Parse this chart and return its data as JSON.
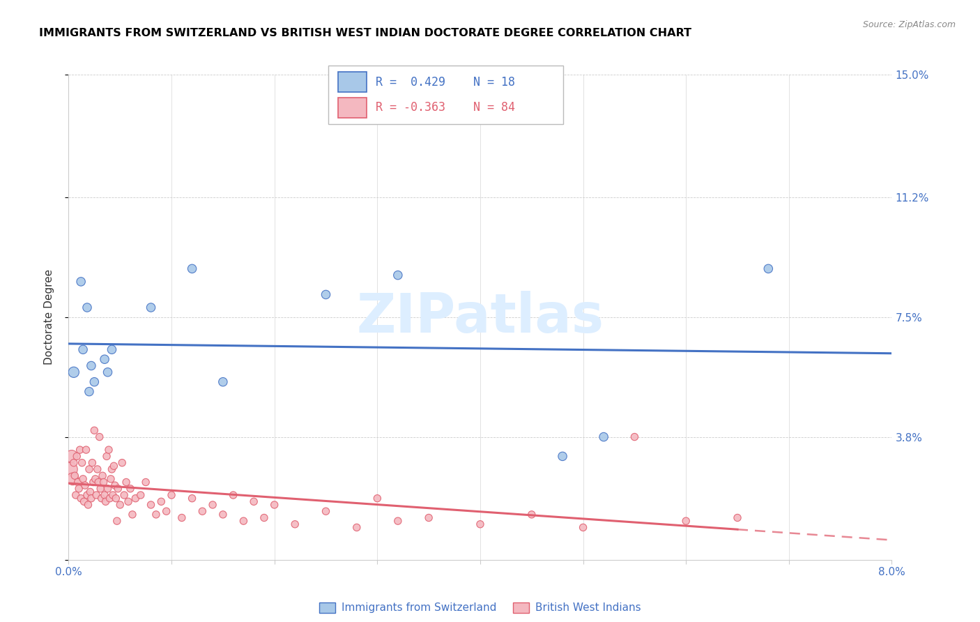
{
  "title": "IMMIGRANTS FROM SWITZERLAND VS BRITISH WEST INDIAN DOCTORATE DEGREE CORRELATION CHART",
  "source": "Source: ZipAtlas.com",
  "ylabel": "Doctorate Degree",
  "xmin": 0.0,
  "xmax": 8.0,
  "ymin": 0.0,
  "ymax": 15.0,
  "yticks": [
    0.0,
    3.8,
    7.5,
    11.2,
    15.0
  ],
  "ytick_labels": [
    "",
    "3.8%",
    "7.5%",
    "11.2%",
    "15.0%"
  ],
  "swiss_color": "#a8c8e8",
  "bwi_color": "#f4b8c0",
  "swiss_line_color": "#4472c4",
  "bwi_line_color": "#e06070",
  "watermark_color": "#ddeeff",
  "swiss_points": [
    [
      0.05,
      5.8
    ],
    [
      0.12,
      8.6
    ],
    [
      0.14,
      6.5
    ],
    [
      0.18,
      7.8
    ],
    [
      0.2,
      5.2
    ],
    [
      0.22,
      6.0
    ],
    [
      0.25,
      5.5
    ],
    [
      0.35,
      6.2
    ],
    [
      0.38,
      5.8
    ],
    [
      0.42,
      6.5
    ],
    [
      0.8,
      7.8
    ],
    [
      1.2,
      9.0
    ],
    [
      1.5,
      5.5
    ],
    [
      2.5,
      8.2
    ],
    [
      3.2,
      8.8
    ],
    [
      4.8,
      3.2
    ],
    [
      5.2,
      3.8
    ],
    [
      6.8,
      9.0
    ]
  ],
  "bwi_points": [
    [
      0.02,
      2.8
    ],
    [
      0.03,
      3.2
    ],
    [
      0.04,
      2.5
    ],
    [
      0.05,
      3.0
    ],
    [
      0.06,
      2.6
    ],
    [
      0.07,
      2.0
    ],
    [
      0.08,
      3.2
    ],
    [
      0.09,
      2.4
    ],
    [
      0.1,
      2.2
    ],
    [
      0.11,
      3.4
    ],
    [
      0.12,
      1.9
    ],
    [
      0.13,
      3.0
    ],
    [
      0.14,
      2.5
    ],
    [
      0.15,
      1.8
    ],
    [
      0.16,
      2.3
    ],
    [
      0.17,
      3.4
    ],
    [
      0.18,
      2.0
    ],
    [
      0.19,
      1.7
    ],
    [
      0.2,
      2.8
    ],
    [
      0.21,
      2.1
    ],
    [
      0.22,
      1.9
    ],
    [
      0.23,
      3.0
    ],
    [
      0.24,
      2.4
    ],
    [
      0.25,
      4.0
    ],
    [
      0.26,
      2.5
    ],
    [
      0.27,
      2.0
    ],
    [
      0.28,
      2.8
    ],
    [
      0.29,
      2.4
    ],
    [
      0.3,
      3.8
    ],
    [
      0.31,
      2.2
    ],
    [
      0.32,
      1.9
    ],
    [
      0.33,
      2.6
    ],
    [
      0.34,
      2.4
    ],
    [
      0.35,
      2.0
    ],
    [
      0.36,
      1.8
    ],
    [
      0.37,
      3.2
    ],
    [
      0.38,
      2.2
    ],
    [
      0.39,
      3.4
    ],
    [
      0.4,
      1.9
    ],
    [
      0.41,
      2.5
    ],
    [
      0.42,
      2.8
    ],
    [
      0.43,
      2.0
    ],
    [
      0.44,
      2.9
    ],
    [
      0.45,
      2.3
    ],
    [
      0.46,
      1.9
    ],
    [
      0.47,
      1.2
    ],
    [
      0.48,
      2.2
    ],
    [
      0.5,
      1.7
    ],
    [
      0.52,
      3.0
    ],
    [
      0.54,
      2.0
    ],
    [
      0.56,
      2.4
    ],
    [
      0.58,
      1.8
    ],
    [
      0.6,
      2.2
    ],
    [
      0.62,
      1.4
    ],
    [
      0.65,
      1.9
    ],
    [
      0.7,
      2.0
    ],
    [
      0.75,
      2.4
    ],
    [
      0.8,
      1.7
    ],
    [
      0.85,
      1.4
    ],
    [
      0.9,
      1.8
    ],
    [
      0.95,
      1.5
    ],
    [
      1.0,
      2.0
    ],
    [
      1.1,
      1.3
    ],
    [
      1.2,
      1.9
    ],
    [
      1.3,
      1.5
    ],
    [
      1.4,
      1.7
    ],
    [
      1.5,
      1.4
    ],
    [
      1.6,
      2.0
    ],
    [
      1.7,
      1.2
    ],
    [
      1.8,
      1.8
    ],
    [
      1.9,
      1.3
    ],
    [
      2.0,
      1.7
    ],
    [
      2.2,
      1.1
    ],
    [
      2.5,
      1.5
    ],
    [
      2.8,
      1.0
    ],
    [
      3.0,
      1.9
    ],
    [
      3.2,
      1.2
    ],
    [
      3.5,
      1.3
    ],
    [
      4.0,
      1.1
    ],
    [
      4.5,
      1.4
    ],
    [
      5.0,
      1.0
    ],
    [
      5.5,
      3.8
    ],
    [
      6.0,
      1.2
    ],
    [
      6.5,
      1.3
    ]
  ],
  "swiss_dot_sizes": [
    120,
    80,
    80,
    80,
    80,
    80,
    80,
    80,
    80,
    80,
    80,
    80,
    80,
    80,
    80,
    80,
    80,
    80
  ],
  "bwi_dot_sizes_large": [
    200,
    160,
    160
  ],
  "bwi_dot_size_default": 55
}
